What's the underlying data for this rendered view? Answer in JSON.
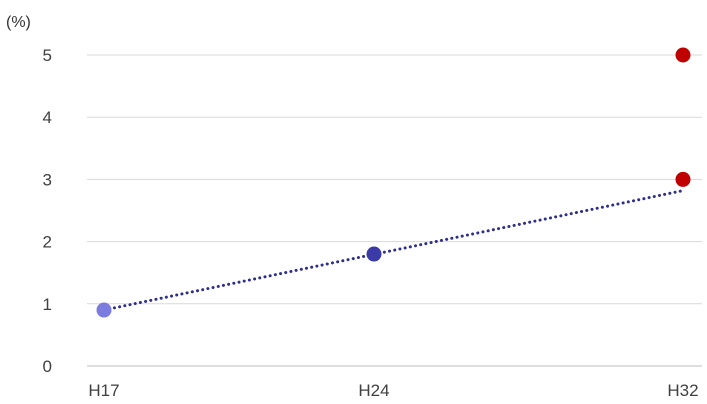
{
  "chart_data": {
    "type": "scatter",
    "title": "",
    "xlabel": "",
    "ylabel": "",
    "y_unit_label": "(%)",
    "categories": [
      "H17",
      "H24",
      "H32"
    ],
    "ylim": [
      0,
      5
    ],
    "y_ticks": [
      "0",
      "1",
      "2",
      "3",
      "4",
      "5"
    ],
    "grid": true,
    "legend": "none",
    "points": [
      {
        "x": "H17",
        "y": 0.9,
        "color": "#7b7be0"
      },
      {
        "x": "H24",
        "y": 1.8,
        "color": "#3b3ba8"
      },
      {
        "x": "H32",
        "y": 3.0,
        "color": "#c00000"
      },
      {
        "x": "H32",
        "y": 5.0,
        "color": "#c00000"
      }
    ],
    "trendline": {
      "style": "dotted",
      "color": "#2e2e8c",
      "from": {
        "x": "H17",
        "y": 0.9
      },
      "to": {
        "x": "H32",
        "y": 2.82
      }
    }
  }
}
